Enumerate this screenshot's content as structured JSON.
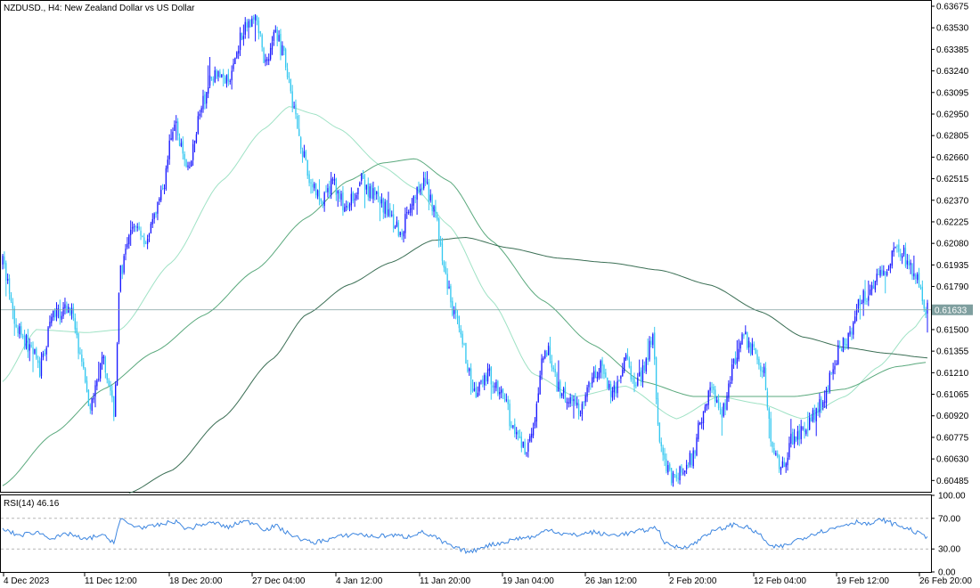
{
  "window": {
    "title": "NZDUSD., H4:  New Zealand Dollar vs US Dollar"
  },
  "colors": {
    "bull_candle": "#1a1aff",
    "bear_candle": "#35c8f0",
    "ma_fast": "#9fe2c5",
    "ma_mid": "#5aa97d",
    "ma_slow": "#3b6f55",
    "rsi_line": "#3d86e0",
    "current_price_line": "#7f9f9f",
    "frame": "#000000"
  },
  "chart_data": [
    {
      "type": "candlestick",
      "symbol": "NZDUSD.",
      "timeframe": "H4",
      "title": "New Zealand Dollar vs US Dollar",
      "current_price": 0.61633,
      "current_price_label": "0.61633",
      "y_ticks": [
        "0.63675",
        "0.63530",
        "0.63385",
        "0.63240",
        "0.63095",
        "0.62950",
        "0.62805",
        "0.62660",
        "0.62515",
        "0.62370",
        "0.62225",
        "0.62080",
        "0.61935",
        "0.61790",
        "0.61500",
        "0.61355",
        "0.61210",
        "0.61065",
        "0.60920",
        "0.60775",
        "0.60630",
        "0.60485"
      ],
      "ylim": [
        0.60415,
        0.63705
      ],
      "x_ticks": [
        "4 Dec 2023",
        "11 Dec 12:00",
        "18 Dec 20:00",
        "27 Dec 04:00",
        "4 Jan 12:00",
        "11 Jan 20:00",
        "19 Jan 04:00",
        "26 Jan 12:00",
        "2 Feb 20:00",
        "12 Feb 04:00",
        "19 Feb 12:00",
        "26 Feb 20:00"
      ],
      "close_path": [
        {
          "i": 0,
          "v": 0.6195
        },
        {
          "i": 8,
          "v": 0.615
        },
        {
          "i": 18,
          "v": 0.6135
        },
        {
          "i": 22,
          "v": 0.6122
        },
        {
          "i": 30,
          "v": 0.616
        },
        {
          "i": 40,
          "v": 0.6165
        },
        {
          "i": 48,
          "v": 0.612
        },
        {
          "i": 52,
          "v": 0.61
        },
        {
          "i": 60,
          "v": 0.613
        },
        {
          "i": 66,
          "v": 0.6095
        },
        {
          "i": 70,
          "v": 0.619
        },
        {
          "i": 78,
          "v": 0.622
        },
        {
          "i": 86,
          "v": 0.621
        },
        {
          "i": 94,
          "v": 0.624
        },
        {
          "i": 102,
          "v": 0.629
        },
        {
          "i": 110,
          "v": 0.6255
        },
        {
          "i": 118,
          "v": 0.63
        },
        {
          "i": 126,
          "v": 0.6325
        },
        {
          "i": 134,
          "v": 0.6315
        },
        {
          "i": 142,
          "v": 0.635
        },
        {
          "i": 150,
          "v": 0.636
        },
        {
          "i": 156,
          "v": 0.633
        },
        {
          "i": 162,
          "v": 0.635
        },
        {
          "i": 168,
          "v": 0.633
        },
        {
          "i": 172,
          "v": 0.6305
        },
        {
          "i": 176,
          "v": 0.628
        },
        {
          "i": 182,
          "v": 0.625
        },
        {
          "i": 190,
          "v": 0.6235
        },
        {
          "i": 196,
          "v": 0.625
        },
        {
          "i": 204,
          "v": 0.623
        },
        {
          "i": 212,
          "v": 0.625
        },
        {
          "i": 220,
          "v": 0.624
        },
        {
          "i": 228,
          "v": 0.623
        },
        {
          "i": 236,
          "v": 0.6215
        },
        {
          "i": 244,
          "v": 0.624
        },
        {
          "i": 250,
          "v": 0.625
        },
        {
          "i": 256,
          "v": 0.6232
        },
        {
          "i": 262,
          "v": 0.619
        },
        {
          "i": 268,
          "v": 0.616
        },
        {
          "i": 274,
          "v": 0.6135
        },
        {
          "i": 280,
          "v": 0.6105
        },
        {
          "i": 288,
          "v": 0.612
        },
        {
          "i": 296,
          "v": 0.611
        },
        {
          "i": 304,
          "v": 0.608
        },
        {
          "i": 310,
          "v": 0.607
        },
        {
          "i": 316,
          "v": 0.609
        },
        {
          "i": 322,
          "v": 0.614
        },
        {
          "i": 330,
          "v": 0.611
        },
        {
          "i": 338,
          "v": 0.61
        },
        {
          "i": 344,
          "v": 0.6095
        },
        {
          "i": 350,
          "v": 0.612
        },
        {
          "i": 356,
          "v": 0.6125
        },
        {
          "i": 362,
          "v": 0.6105
        },
        {
          "i": 370,
          "v": 0.613
        },
        {
          "i": 376,
          "v": 0.611
        },
        {
          "i": 382,
          "v": 0.613
        },
        {
          "i": 386,
          "v": 0.6145
        },
        {
          "i": 390,
          "v": 0.607
        },
        {
          "i": 394,
          "v": 0.606
        },
        {
          "i": 398,
          "v": 0.605
        },
        {
          "i": 404,
          "v": 0.6055
        },
        {
          "i": 410,
          "v": 0.6065
        },
        {
          "i": 414,
          "v": 0.609
        },
        {
          "i": 420,
          "v": 0.611
        },
        {
          "i": 428,
          "v": 0.6095
        },
        {
          "i": 434,
          "v": 0.6125
        },
        {
          "i": 440,
          "v": 0.6145
        },
        {
          "i": 446,
          "v": 0.6135
        },
        {
          "i": 452,
          "v": 0.612
        },
        {
          "i": 456,
          "v": 0.608
        },
        {
          "i": 460,
          "v": 0.606
        },
        {
          "i": 464,
          "v": 0.6055
        },
        {
          "i": 468,
          "v": 0.6075
        },
        {
          "i": 474,
          "v": 0.608
        },
        {
          "i": 480,
          "v": 0.609
        },
        {
          "i": 486,
          "v": 0.61
        },
        {
          "i": 492,
          "v": 0.612
        },
        {
          "i": 498,
          "v": 0.614
        },
        {
          "i": 504,
          "v": 0.6145
        },
        {
          "i": 508,
          "v": 0.617
        },
        {
          "i": 514,
          "v": 0.6175
        },
        {
          "i": 520,
          "v": 0.6185
        },
        {
          "i": 526,
          "v": 0.6195
        },
        {
          "i": 532,
          "v": 0.6205
        },
        {
          "i": 538,
          "v": 0.6195
        },
        {
          "i": 542,
          "v": 0.6185
        },
        {
          "i": 546,
          "v": 0.6172
        },
        {
          "i": 549,
          "v": 0.6163
        }
      ],
      "moving_averages": [
        {
          "color_key": "ma_fast",
          "points": [
            {
              "i": 0,
              "v": 0.6115
            },
            {
              "i": 20,
              "v": 0.615
            },
            {
              "i": 50,
              "v": 0.6148
            },
            {
              "i": 70,
              "v": 0.615
            },
            {
              "i": 100,
              "v": 0.6195
            },
            {
              "i": 130,
              "v": 0.625
            },
            {
              "i": 155,
              "v": 0.6285
            },
            {
              "i": 170,
              "v": 0.63
            },
            {
              "i": 185,
              "v": 0.6295
            },
            {
              "i": 200,
              "v": 0.6285
            },
            {
              "i": 225,
              "v": 0.626
            },
            {
              "i": 245,
              "v": 0.6245
            },
            {
              "i": 265,
              "v": 0.622
            },
            {
              "i": 290,
              "v": 0.617
            },
            {
              "i": 315,
              "v": 0.612
            },
            {
              "i": 340,
              "v": 0.6105
            },
            {
              "i": 370,
              "v": 0.6112
            },
            {
              "i": 400,
              "v": 0.609
            },
            {
              "i": 425,
              "v": 0.6105
            },
            {
              "i": 450,
              "v": 0.61
            },
            {
              "i": 475,
              "v": 0.609
            },
            {
              "i": 500,
              "v": 0.6105
            },
            {
              "i": 520,
              "v": 0.6125
            },
            {
              "i": 540,
              "v": 0.615
            },
            {
              "i": 549,
              "v": 0.6162
            }
          ]
        },
        {
          "color_key": "ma_mid",
          "points": [
            {
              "i": 0,
              "v": 0.6045
            },
            {
              "i": 30,
              "v": 0.608
            },
            {
              "i": 60,
              "v": 0.611
            },
            {
              "i": 90,
              "v": 0.6135
            },
            {
              "i": 120,
              "v": 0.616
            },
            {
              "i": 150,
              "v": 0.619
            },
            {
              "i": 180,
              "v": 0.6225
            },
            {
              "i": 205,
              "v": 0.625
            },
            {
              "i": 225,
              "v": 0.6262
            },
            {
              "i": 245,
              "v": 0.6265
            },
            {
              "i": 265,
              "v": 0.625
            },
            {
              "i": 290,
              "v": 0.621
            },
            {
              "i": 320,
              "v": 0.617
            },
            {
              "i": 350,
              "v": 0.614
            },
            {
              "i": 380,
              "v": 0.6115
            },
            {
              "i": 410,
              "v": 0.6105
            },
            {
              "i": 440,
              "v": 0.6105
            },
            {
              "i": 470,
              "v": 0.6105
            },
            {
              "i": 500,
              "v": 0.611
            },
            {
              "i": 530,
              "v": 0.6125
            },
            {
              "i": 549,
              "v": 0.6128
            }
          ]
        },
        {
          "color_key": "ma_slow",
          "points": [
            {
              "i": 75,
              "v": 0.604
            },
            {
              "i": 100,
              "v": 0.6055
            },
            {
              "i": 130,
              "v": 0.609
            },
            {
              "i": 160,
              "v": 0.613
            },
            {
              "i": 180,
              "v": 0.616
            },
            {
              "i": 205,
              "v": 0.618
            },
            {
              "i": 230,
              "v": 0.6195
            },
            {
              "i": 255,
              "v": 0.621
            },
            {
              "i": 275,
              "v": 0.6212
            },
            {
              "i": 300,
              "v": 0.6205
            },
            {
              "i": 330,
              "v": 0.6198
            },
            {
              "i": 360,
              "v": 0.6195
            },
            {
              "i": 390,
              "v": 0.619
            },
            {
              "i": 420,
              "v": 0.618
            },
            {
              "i": 450,
              "v": 0.6162
            },
            {
              "i": 475,
              "v": 0.6145
            },
            {
              "i": 500,
              "v": 0.6138
            },
            {
              "i": 525,
              "v": 0.6134
            },
            {
              "i": 549,
              "v": 0.6131
            }
          ]
        }
      ],
      "candle_count": 550
    },
    {
      "type": "line",
      "indicator": "RSI(14)",
      "label": "RSI(14) 46.16",
      "current_value": 46.16,
      "ylim": [
        0,
        100
      ],
      "y_ticks": [
        "100.00",
        "70.00",
        "30.00",
        "0.00"
      ],
      "levels": [
        70,
        30
      ],
      "values_path": [
        {
          "i": 0,
          "v": 55
        },
        {
          "i": 10,
          "v": 48
        },
        {
          "i": 20,
          "v": 52
        },
        {
          "i": 30,
          "v": 44
        },
        {
          "i": 40,
          "v": 50
        },
        {
          "i": 48,
          "v": 42
        },
        {
          "i": 58,
          "v": 48
        },
        {
          "i": 66,
          "v": 40
        },
        {
          "i": 70,
          "v": 68
        },
        {
          "i": 78,
          "v": 60
        },
        {
          "i": 86,
          "v": 58
        },
        {
          "i": 94,
          "v": 62
        },
        {
          "i": 102,
          "v": 66
        },
        {
          "i": 110,
          "v": 56
        },
        {
          "i": 118,
          "v": 62
        },
        {
          "i": 126,
          "v": 64
        },
        {
          "i": 134,
          "v": 58
        },
        {
          "i": 142,
          "v": 66
        },
        {
          "i": 150,
          "v": 64
        },
        {
          "i": 156,
          "v": 55
        },
        {
          "i": 162,
          "v": 60
        },
        {
          "i": 170,
          "v": 50
        },
        {
          "i": 176,
          "v": 44
        },
        {
          "i": 184,
          "v": 38
        },
        {
          "i": 192,
          "v": 42
        },
        {
          "i": 200,
          "v": 46
        },
        {
          "i": 210,
          "v": 50
        },
        {
          "i": 220,
          "v": 46
        },
        {
          "i": 230,
          "v": 48
        },
        {
          "i": 240,
          "v": 46
        },
        {
          "i": 248,
          "v": 52
        },
        {
          "i": 256,
          "v": 46
        },
        {
          "i": 262,
          "v": 38
        },
        {
          "i": 270,
          "v": 30
        },
        {
          "i": 278,
          "v": 26
        },
        {
          "i": 286,
          "v": 34
        },
        {
          "i": 296,
          "v": 38
        },
        {
          "i": 306,
          "v": 44
        },
        {
          "i": 316,
          "v": 46
        },
        {
          "i": 324,
          "v": 56
        },
        {
          "i": 332,
          "v": 50
        },
        {
          "i": 340,
          "v": 48
        },
        {
          "i": 350,
          "v": 52
        },
        {
          "i": 360,
          "v": 48
        },
        {
          "i": 370,
          "v": 50
        },
        {
          "i": 380,
          "v": 54
        },
        {
          "i": 388,
          "v": 58
        },
        {
          "i": 394,
          "v": 36
        },
        {
          "i": 402,
          "v": 32
        },
        {
          "i": 410,
          "v": 36
        },
        {
          "i": 418,
          "v": 50
        },
        {
          "i": 426,
          "v": 56
        },
        {
          "i": 434,
          "v": 62
        },
        {
          "i": 442,
          "v": 58
        },
        {
          "i": 450,
          "v": 48
        },
        {
          "i": 456,
          "v": 32
        },
        {
          "i": 464,
          "v": 34
        },
        {
          "i": 474,
          "v": 44
        },
        {
          "i": 484,
          "v": 52
        },
        {
          "i": 492,
          "v": 56
        },
        {
          "i": 500,
          "v": 62
        },
        {
          "i": 508,
          "v": 66
        },
        {
          "i": 514,
          "v": 62
        },
        {
          "i": 522,
          "v": 68
        },
        {
          "i": 530,
          "v": 62
        },
        {
          "i": 538,
          "v": 56
        },
        {
          "i": 544,
          "v": 50
        },
        {
          "i": 549,
          "v": 46
        }
      ]
    }
  ]
}
